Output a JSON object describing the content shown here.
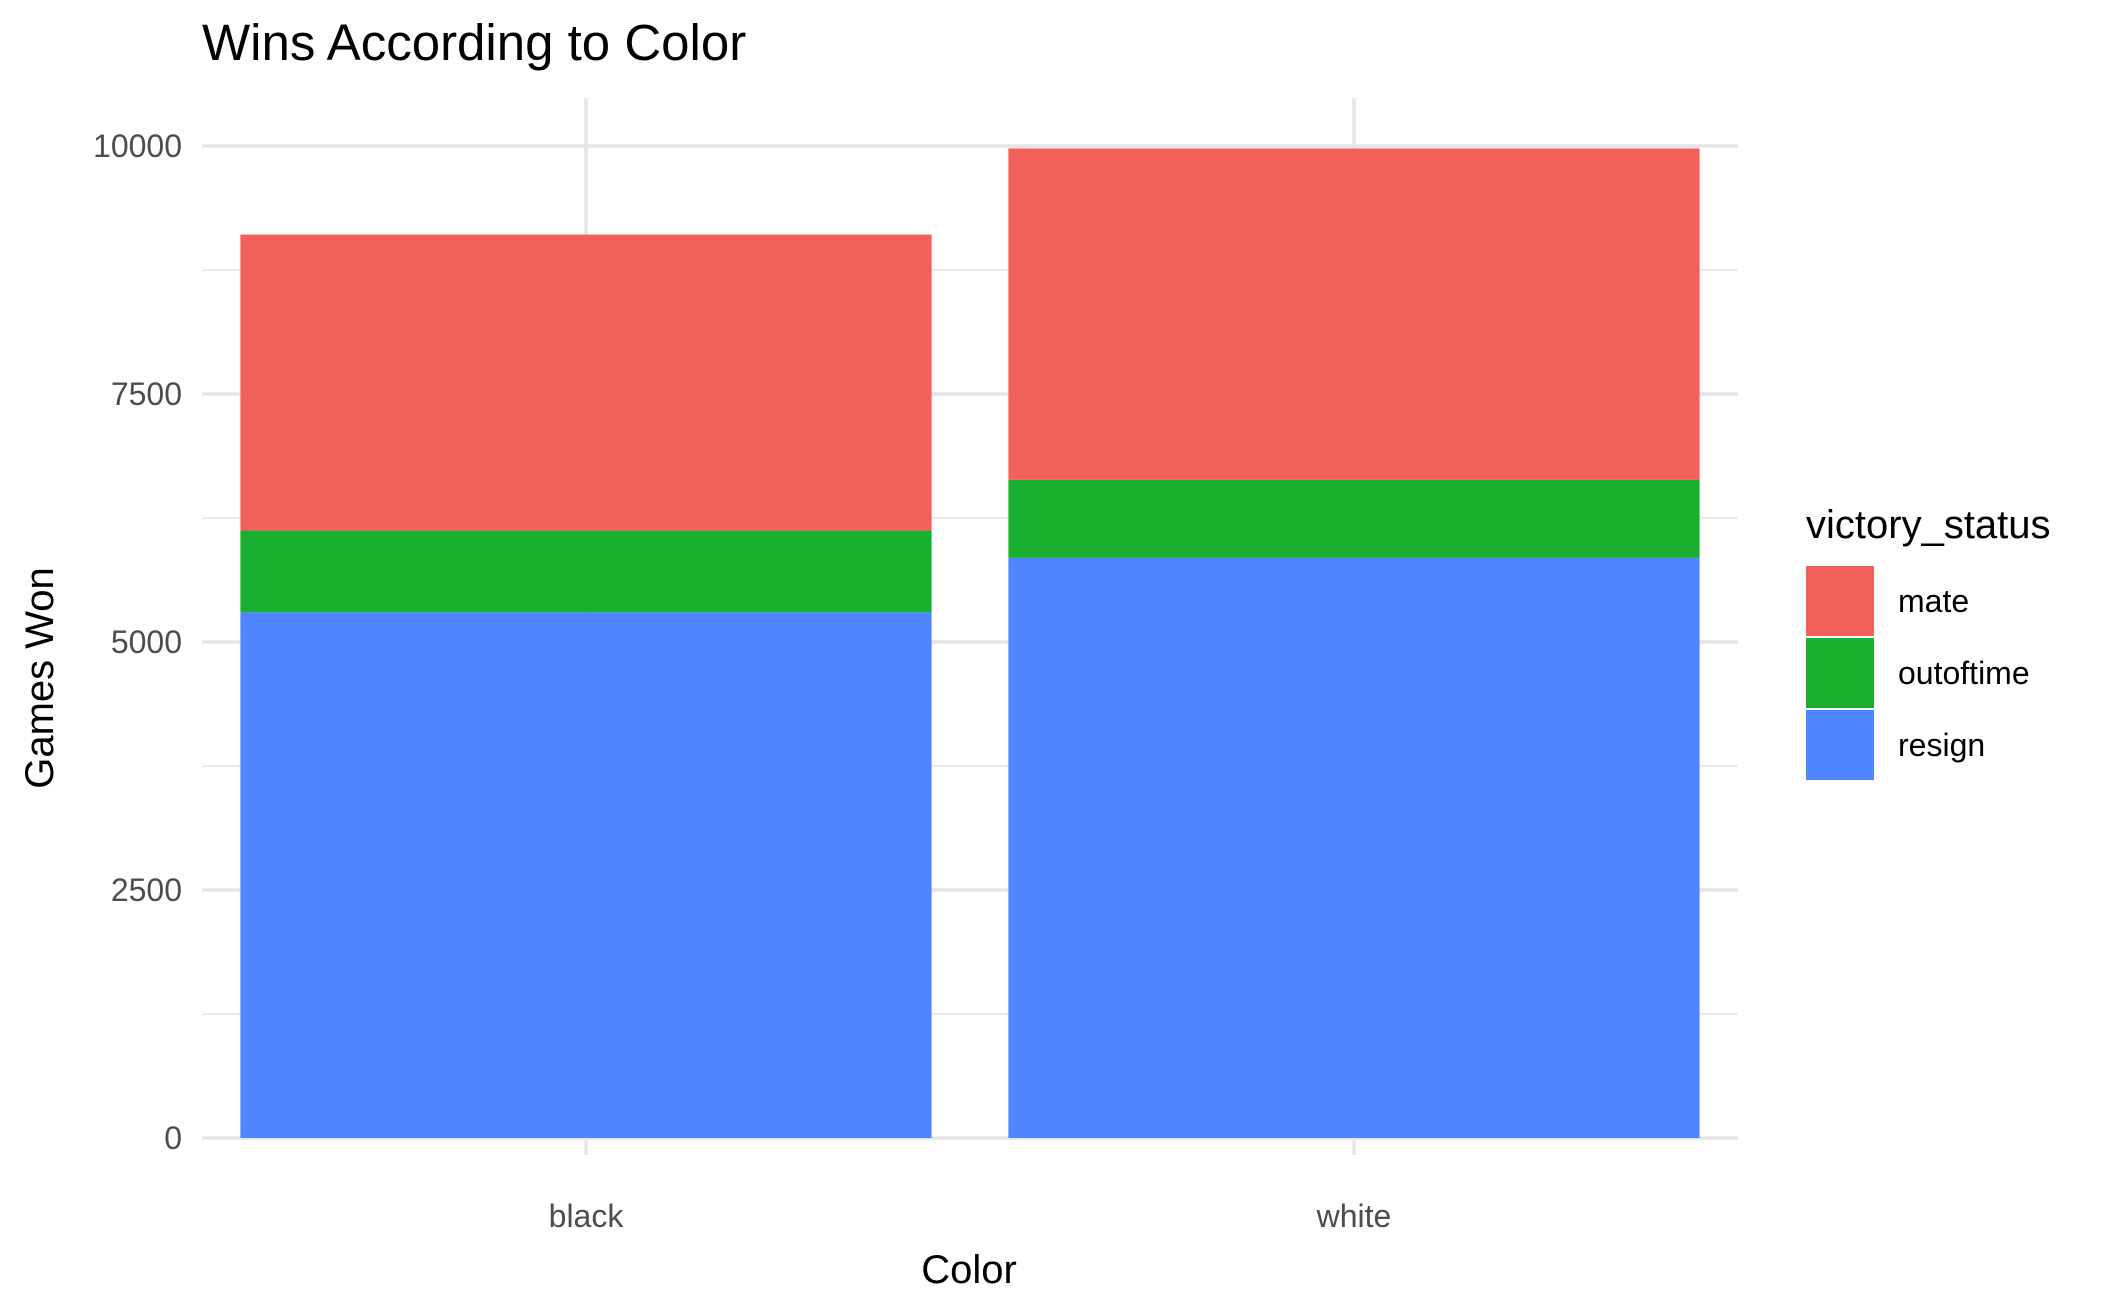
{
  "chart_data": {
    "type": "bar",
    "stacked": true,
    "title": "Wins According to Color",
    "xlabel": "Color",
    "ylabel": "Games Won",
    "categories": [
      "black",
      "white"
    ],
    "series": [
      {
        "name": "resign",
        "values": [
          5299,
          5848
        ],
        "color": "#4f86ff"
      },
      {
        "name": "outoftime",
        "values": [
          824,
          786
        ],
        "color": "#1ab02f"
      },
      {
        "name": "mate",
        "values": [
          2984,
          3341
        ],
        "color": "#f2605b"
      }
    ],
    "ylim": [
      0,
      10500
    ],
    "yticks": [
      "0",
      "2500",
      "5000",
      "7500",
      "10000"
    ],
    "grid": true,
    "legend": {
      "title": "victory_status",
      "position": "right",
      "order": [
        "mate",
        "outoftime",
        "resign"
      ]
    }
  }
}
